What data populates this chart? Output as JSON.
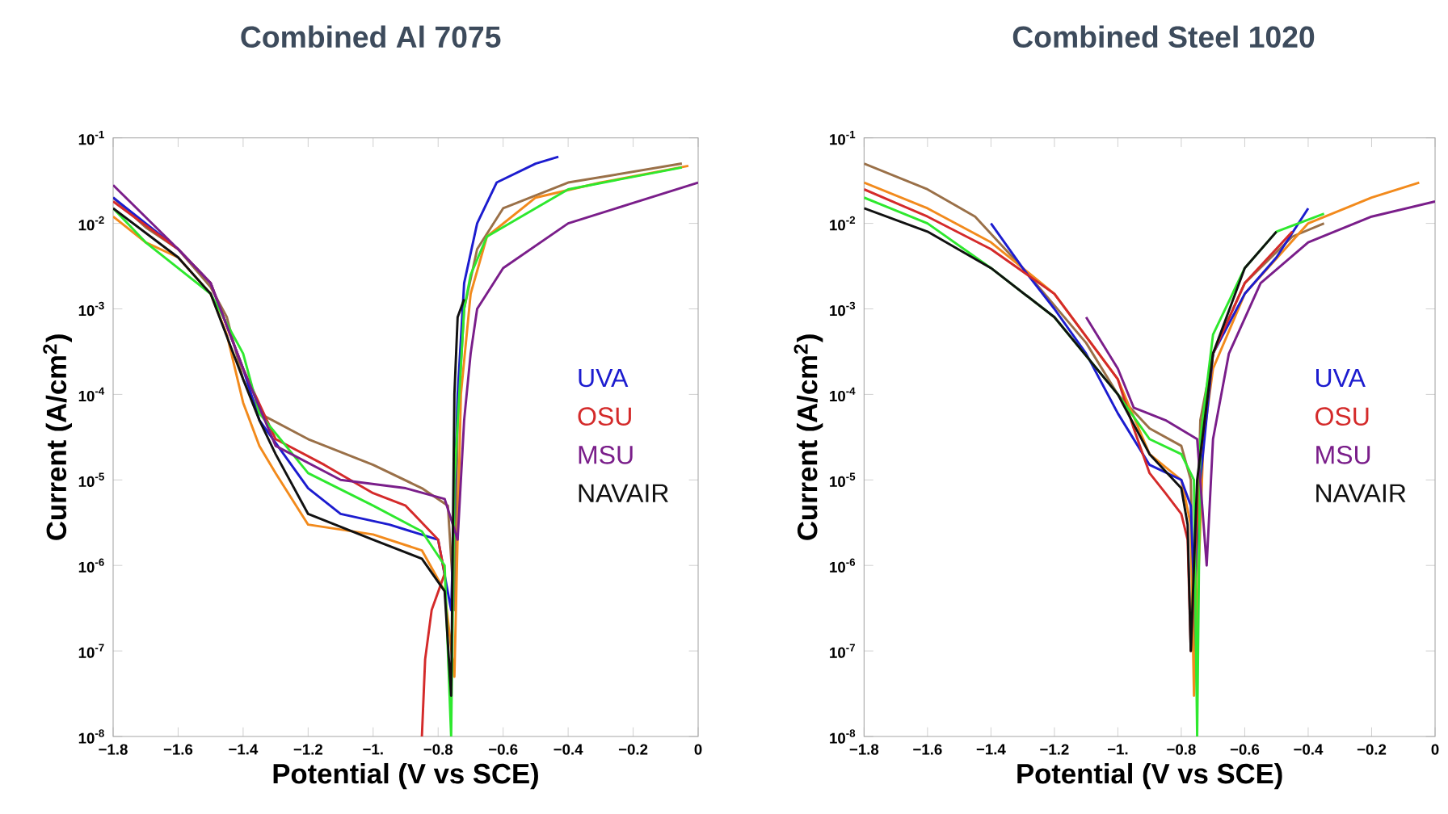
{
  "chart_data": [
    {
      "type": "line",
      "title": "Combined Al 7075",
      "xlabel": "Potential (V vs SCE)",
      "ylabel": "Current (A/cm$^{2}$)",
      "log": "y",
      "legend": "right",
      "xlim": [
        -1.8,
        0
      ],
      "ylim": [
        1e-08,
        0.1
      ],
      "xticks": [
        {
          "value": -1.8,
          "label": "−1.8"
        },
        {
          "value": -1.6,
          "label": "−1.6"
        },
        {
          "value": -1.4,
          "label": "−1.4"
        },
        {
          "value": -1.2,
          "label": "−1.2"
        },
        {
          "value": -1.0,
          "label": "−1."
        },
        {
          "value": -0.8,
          "label": "−0.8"
        },
        {
          "value": -0.6,
          "label": "−0.6"
        },
        {
          "value": -0.4,
          "label": "−0.4"
        },
        {
          "value": -0.2,
          "label": "−0.2"
        },
        {
          "value": 0,
          "label": "0"
        }
      ],
      "yticks": [
        {
          "value": 1e-08,
          "label": "10$^{-8}$"
        },
        {
          "value": 1e-07,
          "label": "10$^{-7}$"
        },
        {
          "value": 1e-06,
          "label": "10$^{-6}$"
        },
        {
          "value": 1e-05,
          "label": "10$^{-5}$"
        },
        {
          "value": 0.0001,
          "label": "10$^{-4}$"
        },
        {
          "value": 0.001,
          "label": "10$^{-3}$"
        },
        {
          "value": 0.01,
          "label": "10$^{-2}$"
        },
        {
          "value": 0.1,
          "label": "10$^{-1}$"
        }
      ],
      "series": [
        {
          "color": "#9a7048",
          "x": [
            -1.8,
            -1.7,
            -1.6,
            -1.5,
            -1.45,
            -1.4,
            -1.35,
            -1.2,
            -1.0,
            -0.85,
            -0.77,
            -0.75,
            -0.74,
            -0.72,
            -0.68,
            -0.6,
            -0.4,
            -0.05
          ],
          "values": [
            0.02,
            0.009,
            0.005,
            0.0018,
            0.0008,
            0.00015,
            6e-05,
            3e-05,
            1.5e-05,
            8e-06,
            5e-06,
            3e-07,
            5e-05,
            0.001,
            0.005,
            0.015,
            0.03,
            0.05
          ]
        },
        {
          "color": "#f28a1c",
          "x": [
            -1.8,
            -1.7,
            -1.6,
            -1.5,
            -1.45,
            -1.4,
            -1.35,
            -1.3,
            -1.2,
            -1.0,
            -0.85,
            -0.78,
            -0.75,
            -0.73,
            -0.7,
            -0.65,
            -0.5,
            -0.3,
            -0.03
          ],
          "values": [
            0.012,
            0.006,
            0.004,
            0.0015,
            0.0005,
            8e-05,
            2.5e-05,
            1.2e-05,
            3e-06,
            2.3e-06,
            1.5e-06,
            5e-07,
            5e-08,
            0.0001,
            0.0015,
            0.007,
            0.02,
            0.03,
            0.047
          ]
        },
        {
          "name": "UVA",
          "color": "#1c1ccf",
          "x": [
            -1.8,
            -1.7,
            -1.6,
            -1.5,
            -1.4,
            -1.35,
            -1.2,
            -1.1,
            -0.95,
            -0.8,
            -0.76,
            -0.74,
            -0.72,
            -0.68,
            -0.62,
            -0.5,
            -0.43
          ],
          "values": [
            0.02,
            0.01,
            0.005,
            0.002,
            0.0002,
            5e-05,
            8e-06,
            4e-06,
            3e-06,
            2e-06,
            3e-07,
            0.0001,
            0.002,
            0.01,
            0.03,
            0.05,
            0.06
          ]
        },
        {
          "name": "OSU",
          "color": "#d42a2a",
          "x": [
            -1.8,
            -1.6,
            -1.5,
            -1.4,
            -1.3,
            -1.15,
            -1.0,
            -0.9,
            -0.8,
            -0.78,
            -0.82,
            -0.84,
            -0.85
          ],
          "values": [
            0.018,
            0.005,
            0.002,
            0.0002,
            3e-05,
            1.5e-05,
            7e-06,
            5e-06,
            2e-06,
            8e-07,
            3e-07,
            8e-08,
            1e-08
          ]
        },
        {
          "color": "#2ee82e",
          "x": [
            -1.8,
            -1.7,
            -1.6,
            -1.5,
            -1.4,
            -1.35,
            -1.2,
            -1.0,
            -0.85,
            -0.78,
            -0.76,
            -0.75,
            -0.72,
            -0.7,
            -0.65,
            -0.4,
            -0.05
          ],
          "values": [
            0.015,
            0.006,
            0.003,
            0.0015,
            0.0003,
            6e-05,
            1.2e-05,
            5e-06,
            2.5e-06,
            1e-06,
            1e-08,
            1e-05,
            0.001,
            0.0025,
            0.007,
            0.025,
            0.045
          ]
        },
        {
          "name": "MSU",
          "color": "#7a1e8a",
          "x": [
            -1.8,
            -1.6,
            -1.5,
            -1.4,
            -1.3,
            -1.1,
            -0.9,
            -0.78,
            -0.74,
            -0.72,
            -0.7,
            -0.68,
            -0.6,
            -0.4,
            0
          ],
          "values": [
            0.028,
            0.005,
            0.002,
            0.0002,
            2.5e-05,
            1e-05,
            8e-06,
            6e-06,
            2e-06,
            5e-05,
            0.0003,
            0.001,
            0.003,
            0.01,
            0.03
          ]
        },
        {
          "name": "NAVAIR",
          "color": "#111111",
          "x": [
            -1.8,
            -1.6,
            -1.5,
            -1.4,
            -1.35,
            -1.3,
            -1.2,
            -1.0,
            -0.85,
            -0.78,
            -0.76,
            -0.75,
            -0.74,
            -0.72
          ],
          "values": [
            0.015,
            0.004,
            0.0015,
            0.00015,
            5e-05,
            2e-05,
            4e-06,
            2e-06,
            1.2e-06,
            5e-07,
            3e-08,
            0.0001,
            0.0008,
            0.0013
          ]
        }
      ]
    },
    {
      "type": "line",
      "title": "Combined Steel 1020",
      "xlabel": "Potential (V vs SCE)",
      "ylabel": "Current (A/cm$^{2}$)",
      "log": "y",
      "legend": "right",
      "xlim": [
        -1.8,
        0
      ],
      "ylim": [
        1e-08,
        0.1
      ],
      "xticks": [
        {
          "value": -1.8,
          "label": "−1.8"
        },
        {
          "value": -1.6,
          "label": "−1.6"
        },
        {
          "value": -1.4,
          "label": "−1.4"
        },
        {
          "value": -1.2,
          "label": "−1.2"
        },
        {
          "value": -1.0,
          "label": "−1."
        },
        {
          "value": -0.8,
          "label": "−0.8"
        },
        {
          "value": -0.6,
          "label": "−0.6"
        },
        {
          "value": -0.4,
          "label": "−0.4"
        },
        {
          "value": -0.2,
          "label": "−0.2"
        },
        {
          "value": 0,
          "label": "0"
        }
      ],
      "yticks": [
        {
          "value": 1e-08,
          "label": "10$^{-8}$"
        },
        {
          "value": 1e-07,
          "label": "10$^{-7}$"
        },
        {
          "value": 1e-06,
          "label": "10$^{-6}$"
        },
        {
          "value": 1e-05,
          "label": "10$^{-5}$"
        },
        {
          "value": 0.0001,
          "label": "10$^{-4}$"
        },
        {
          "value": 0.001,
          "label": "10$^{-3}$"
        },
        {
          "value": 0.01,
          "label": "10$^{-2}$"
        },
        {
          "value": 0.1,
          "label": "10$^{-1}$"
        }
      ],
      "series": [
        {
          "color": "#9a7048",
          "x": [
            -1.8,
            -1.6,
            -1.45,
            -1.3,
            -1.1,
            -1.0,
            -0.9,
            -0.8,
            -0.77,
            -0.76,
            -0.74,
            -0.7,
            -0.6,
            -0.45,
            -0.35
          ],
          "values": [
            0.05,
            0.025,
            0.012,
            0.003,
            0.0004,
            0.0001,
            4e-05,
            2.5e-05,
            1e-05,
            1e-07,
            5e-05,
            0.0003,
            0.002,
            0.007,
            0.01
          ]
        },
        {
          "color": "#f28a1c",
          "x": [
            -1.8,
            -1.6,
            -1.4,
            -1.2,
            -1.0,
            -0.9,
            -0.8,
            -0.77,
            -0.76,
            -0.73,
            -0.7,
            -0.6,
            -0.4,
            -0.2,
            -0.05
          ],
          "values": [
            0.03,
            0.015,
            0.006,
            0.0015,
            0.00015,
            2e-05,
            1e-05,
            3e-06,
            3e-08,
            3e-05,
            0.0002,
            0.0015,
            0.01,
            0.02,
            0.03
          ]
        },
        {
          "name": "UVA",
          "color": "#1c1ccf",
          "x": [
            -1.4,
            -1.3,
            -1.2,
            -1.1,
            -1.0,
            -0.9,
            -0.8,
            -0.77,
            -0.76,
            -0.74,
            -0.7,
            -0.6,
            -0.5,
            -0.4
          ],
          "values": [
            0.01,
            0.003,
            0.001,
            0.0003,
            6e-05,
            1.5e-05,
            1e-05,
            5e-06,
            5e-07,
            1e-05,
            0.0003,
            0.0015,
            0.004,
            0.015
          ]
        },
        {
          "name": "OSU",
          "color": "#d42a2a",
          "x": [
            -1.8,
            -1.6,
            -1.4,
            -1.2,
            -1.0,
            -0.95,
            -0.9,
            -0.85,
            -0.8,
            -0.78,
            -0.77,
            -0.74,
            -0.7,
            -0.6,
            -0.45
          ],
          "values": [
            0.025,
            0.012,
            0.005,
            0.0015,
            0.00015,
            4e-05,
            1.2e-05,
            7e-06,
            4e-06,
            2e-06,
            1e-07,
            2e-05,
            0.0003,
            0.002,
            0.008
          ]
        },
        {
          "color": "#2ee82e",
          "x": [
            -1.8,
            -1.6,
            -1.4,
            -1.2,
            -1.0,
            -0.9,
            -0.8,
            -0.76,
            -0.75,
            -0.74,
            -0.7,
            -0.6,
            -0.5,
            -0.35
          ],
          "values": [
            0.02,
            0.01,
            0.003,
            0.0008,
            0.0001,
            3e-05,
            2e-05,
            1e-05,
            1e-08,
            3e-05,
            0.0005,
            0.003,
            0.008,
            0.013
          ]
        },
        {
          "name": "MSU",
          "color": "#7a1e8a",
          "x": [
            -1.1,
            -1.0,
            -0.95,
            -0.85,
            -0.75,
            -0.72,
            -0.7,
            -0.65,
            -0.55,
            -0.4,
            -0.2,
            0
          ],
          "values": [
            0.0008,
            0.0002,
            7e-05,
            5e-05,
            3e-05,
            1e-06,
            3e-05,
            0.0003,
            0.002,
            0.006,
            0.012,
            0.018
          ]
        },
        {
          "name": "NAVAIR",
          "color": "#111111",
          "x": [
            -1.8,
            -1.6,
            -1.4,
            -1.2,
            -1.0,
            -0.9,
            -0.8,
            -0.78,
            -0.77,
            -0.75,
            -0.7,
            -0.6,
            -0.5
          ],
          "values": [
            0.015,
            0.008,
            0.003,
            0.0008,
            0.0001,
            2e-05,
            8e-06,
            3e-06,
            1e-07,
            1e-05,
            0.0003,
            0.003,
            0.008
          ]
        }
      ]
    }
  ]
}
